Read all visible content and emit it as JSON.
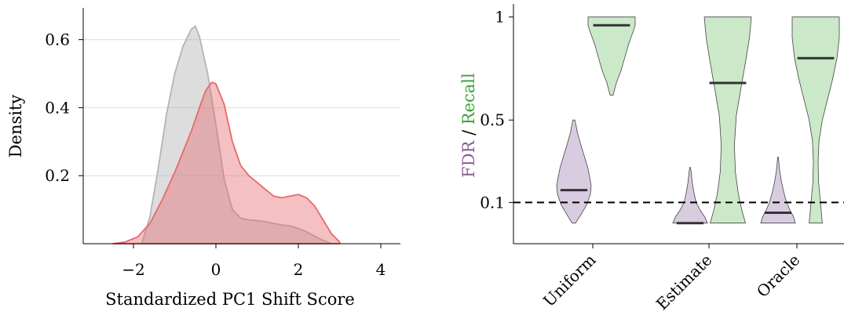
{
  "chart_data": [
    {
      "type": "area",
      "xlabel": "Standardized PC1 Shift Score",
      "ylabel": "Density",
      "xlim": [
        -3,
        4.2
      ],
      "ylim": [
        0,
        0.7
      ],
      "xticks": [
        -2,
        0,
        2,
        4
      ],
      "xtick_labels": [
        "−2",
        "0",
        "2",
        "4"
      ],
      "yticks": [
        0.2,
        0.4,
        0.6
      ],
      "ytick_labels": [
        "0.2",
        "0.4",
        "0.6"
      ],
      "grid": "horizontal",
      "legend": "none",
      "series": [
        {
          "color": "#b4b4b4",
          "x": [
            -1.8,
            -1.6,
            -1.4,
            -1.2,
            -1.0,
            -0.8,
            -0.6,
            -0.5,
            -0.4,
            -0.2,
            0.0,
            0.2,
            0.4,
            0.6,
            0.8,
            1.0,
            1.2,
            1.4,
            1.6,
            1.8,
            2.0,
            2.2,
            2.4,
            2.6,
            2.8
          ],
          "y": [
            0.0,
            0.08,
            0.22,
            0.38,
            0.5,
            0.58,
            0.63,
            0.64,
            0.61,
            0.5,
            0.35,
            0.19,
            0.1,
            0.075,
            0.07,
            0.068,
            0.065,
            0.06,
            0.055,
            0.052,
            0.045,
            0.035,
            0.022,
            0.01,
            0.0
          ]
        },
        {
          "color": "#e8696b",
          "x": [
            -2.5,
            -2.2,
            -1.9,
            -1.6,
            -1.3,
            -1.0,
            -0.8,
            -0.6,
            -0.4,
            -0.25,
            -0.1,
            0.0,
            0.2,
            0.4,
            0.6,
            0.8,
            1.0,
            1.2,
            1.4,
            1.6,
            1.8,
            2.0,
            2.2,
            2.4,
            2.6,
            2.8,
            3.0
          ],
          "y": [
            0.0,
            0.005,
            0.02,
            0.06,
            0.13,
            0.21,
            0.27,
            0.33,
            0.4,
            0.45,
            0.475,
            0.47,
            0.41,
            0.3,
            0.23,
            0.2,
            0.18,
            0.16,
            0.14,
            0.135,
            0.14,
            0.145,
            0.135,
            0.11,
            0.07,
            0.03,
            0.005
          ]
        }
      ]
    },
    {
      "type": "violin",
      "ylabel_parts": [
        {
          "text": "FDR",
          "color": "#8b5a96"
        },
        {
          "text": " / ",
          "color": "#000000"
        },
        {
          "text": "Recall",
          "color": "#3aa435"
        }
      ],
      "ylim": [
        0,
        1
      ],
      "yticks": [
        0.1,
        0.5,
        1
      ],
      "ytick_labels": [
        "0.1",
        "0.5",
        "1"
      ],
      "reference_line": 0.1,
      "categories": [
        "Uniform",
        "Estimate",
        "Oracle"
      ],
      "series": [
        {
          "name": "FDR",
          "color": "#d9cce0",
          "median": [
            0.16,
            0.0,
            0.05
          ],
          "profiles": [
            [
              [
                0.0,
                0.1
              ],
              [
                0.04,
                0.4
              ],
              [
                0.09,
                0.75
              ],
              [
                0.14,
                0.95
              ],
              [
                0.18,
                1.0
              ],
              [
                0.22,
                0.92
              ],
              [
                0.27,
                0.8
              ],
              [
                0.32,
                0.62
              ],
              [
                0.38,
                0.4
              ],
              [
                0.44,
                0.2
              ],
              [
                0.5,
                0.06
              ]
            ],
            [
              [
                0.0,
                1.0
              ],
              [
                0.03,
                0.85
              ],
              [
                0.06,
                0.6
              ],
              [
                0.1,
                0.35
              ],
              [
                0.15,
                0.22
              ],
              [
                0.2,
                0.12
              ],
              [
                0.25,
                0.06
              ],
              [
                0.27,
                0.02
              ]
            ],
            [
              [
                0.0,
                1.0
              ],
              [
                0.03,
                0.9
              ],
              [
                0.06,
                0.7
              ],
              [
                0.1,
                0.5
              ],
              [
                0.15,
                0.33
              ],
              [
                0.2,
                0.2
              ],
              [
                0.25,
                0.1
              ],
              [
                0.3,
                0.04
              ],
              [
                0.32,
                0.02
              ]
            ]
          ]
        },
        {
          "name": "Recall",
          "color": "#cbe8c8",
          "median": [
            0.96,
            0.68,
            0.8
          ],
          "profiles": [
            [
              [
                0.62,
                0.06
              ],
              [
                0.68,
                0.2
              ],
              [
                0.74,
                0.4
              ],
              [
                0.8,
                0.55
              ],
              [
                0.86,
                0.7
              ],
              [
                0.9,
                0.82
              ],
              [
                0.93,
                0.92
              ],
              [
                0.96,
                1.0
              ],
              [
                1.0,
                1.0
              ]
            ],
            [
              [
                0.0,
                0.75
              ],
              [
                0.06,
                0.6
              ],
              [
                0.14,
                0.45
              ],
              [
                0.25,
                0.32
              ],
              [
                0.38,
                0.28
              ],
              [
                0.52,
                0.36
              ],
              [
                0.65,
                0.55
              ],
              [
                0.78,
                0.75
              ],
              [
                0.9,
                0.92
              ],
              [
                1.0,
                1.0
              ]
            ],
            [
              [
                0.0,
                0.28
              ],
              [
                0.1,
                0.2
              ],
              [
                0.2,
                0.12
              ],
              [
                0.3,
                0.1
              ],
              [
                0.4,
                0.14
              ],
              [
                0.5,
                0.28
              ],
              [
                0.6,
                0.5
              ],
              [
                0.7,
                0.72
              ],
              [
                0.8,
                0.9
              ],
              [
                0.9,
                1.0
              ],
              [
                1.0,
                1.0
              ]
            ]
          ]
        }
      ]
    }
  ]
}
